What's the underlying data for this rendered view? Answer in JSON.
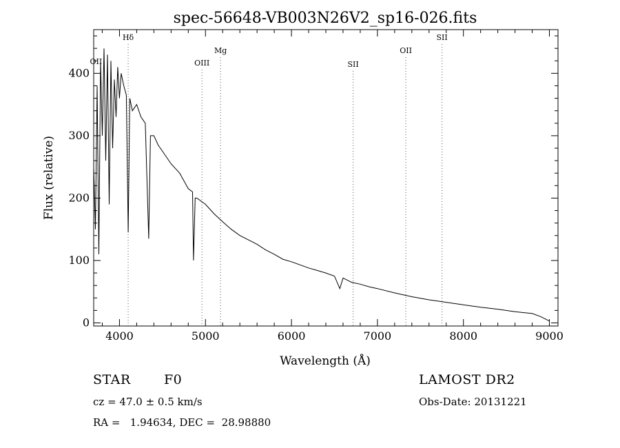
{
  "chart_data": {
    "type": "line",
    "title": "spec-56648-VB003N26V2_sp16-026.fits",
    "xlabel": "Wavelength (Å)",
    "ylabel": "Flux (relative)",
    "xlim": [
      3700,
      9100
    ],
    "ylim": [
      -5,
      470
    ],
    "x_ticks": [
      4000,
      5000,
      6000,
      7000,
      8000,
      9000
    ],
    "y_ticks": [
      0,
      100,
      200,
      300,
      400
    ],
    "x_tick_labels": [
      "4000",
      "5000",
      "6000",
      "7000",
      "8000",
      "9000"
    ],
    "y_tick_labels": [
      "0",
      "100",
      "200",
      "300",
      "400"
    ],
    "grid": false,
    "line_color": "#000000",
    "series": [
      {
        "x": [
          3700,
          3720,
          3740,
          3760,
          3780,
          3800,
          3820,
          3840,
          3860,
          3880,
          3900,
          3920,
          3940,
          3960,
          3980,
          4000,
          4020,
          4050,
          4080,
          4101,
          4120,
          4150,
          4200,
          4250,
          4300,
          4340,
          4360,
          4400,
          4450,
          4500,
          4600,
          4700,
          4800,
          4850,
          4861,
          4880,
          4900,
          5000,
          5100,
          5200,
          5300,
          5400,
          5500,
          5600,
          5700,
          5800,
          5900,
          6000,
          6100,
          6200,
          6300,
          6400,
          6500,
          6563,
          6600,
          6700,
          6800,
          6900,
          7000,
          7200,
          7400,
          7600,
          7800,
          8000,
          8200,
          8400,
          8600,
          8800,
          8900,
          9000
        ],
        "y": [
          250,
          150,
          380,
          110,
          420,
          300,
          440,
          260,
          430,
          190,
          420,
          280,
          390,
          330,
          410,
          360,
          400,
          380,
          365,
          145,
          360,
          340,
          350,
          330,
          320,
          135,
          300,
          300,
          285,
          275,
          255,
          240,
          215,
          210,
          100,
          200,
          200,
          190,
          175,
          162,
          150,
          140,
          133,
          126,
          117,
          110,
          102,
          98,
          93,
          88,
          84,
          80,
          75,
          55,
          72,
          65,
          62,
          58,
          55,
          48,
          42,
          37,
          33,
          29,
          25,
          22,
          18,
          15,
          10,
          3
        ]
      }
    ],
    "annotations": [
      {
        "label": "OII",
        "x": 3727,
        "dotted_line": false
      },
      {
        "label": "Hδ",
        "x": 4101,
        "dotted_line": true
      },
      {
        "label": "OIII",
        "x": 4959,
        "dotted_line": true
      },
      {
        "label": "Mg",
        "x": 5175,
        "dotted_line": true
      },
      {
        "label": "SII",
        "x": 6717,
        "dotted_line": true
      },
      {
        "label": "OII",
        "x": 7330,
        "dotted_line": true
      },
      {
        "label": "SII",
        "x": 7751,
        "dotted_line": true
      }
    ]
  },
  "info": {
    "class_label": "STAR",
    "subclass_label": "F0",
    "survey": "LAMOST DR2",
    "cz": "cz = 47.0 ± 0.5 km/s",
    "obs_date": "Obs-Date: 20131221",
    "coords": "RA =   1.94634, DEC =  28.98880"
  }
}
